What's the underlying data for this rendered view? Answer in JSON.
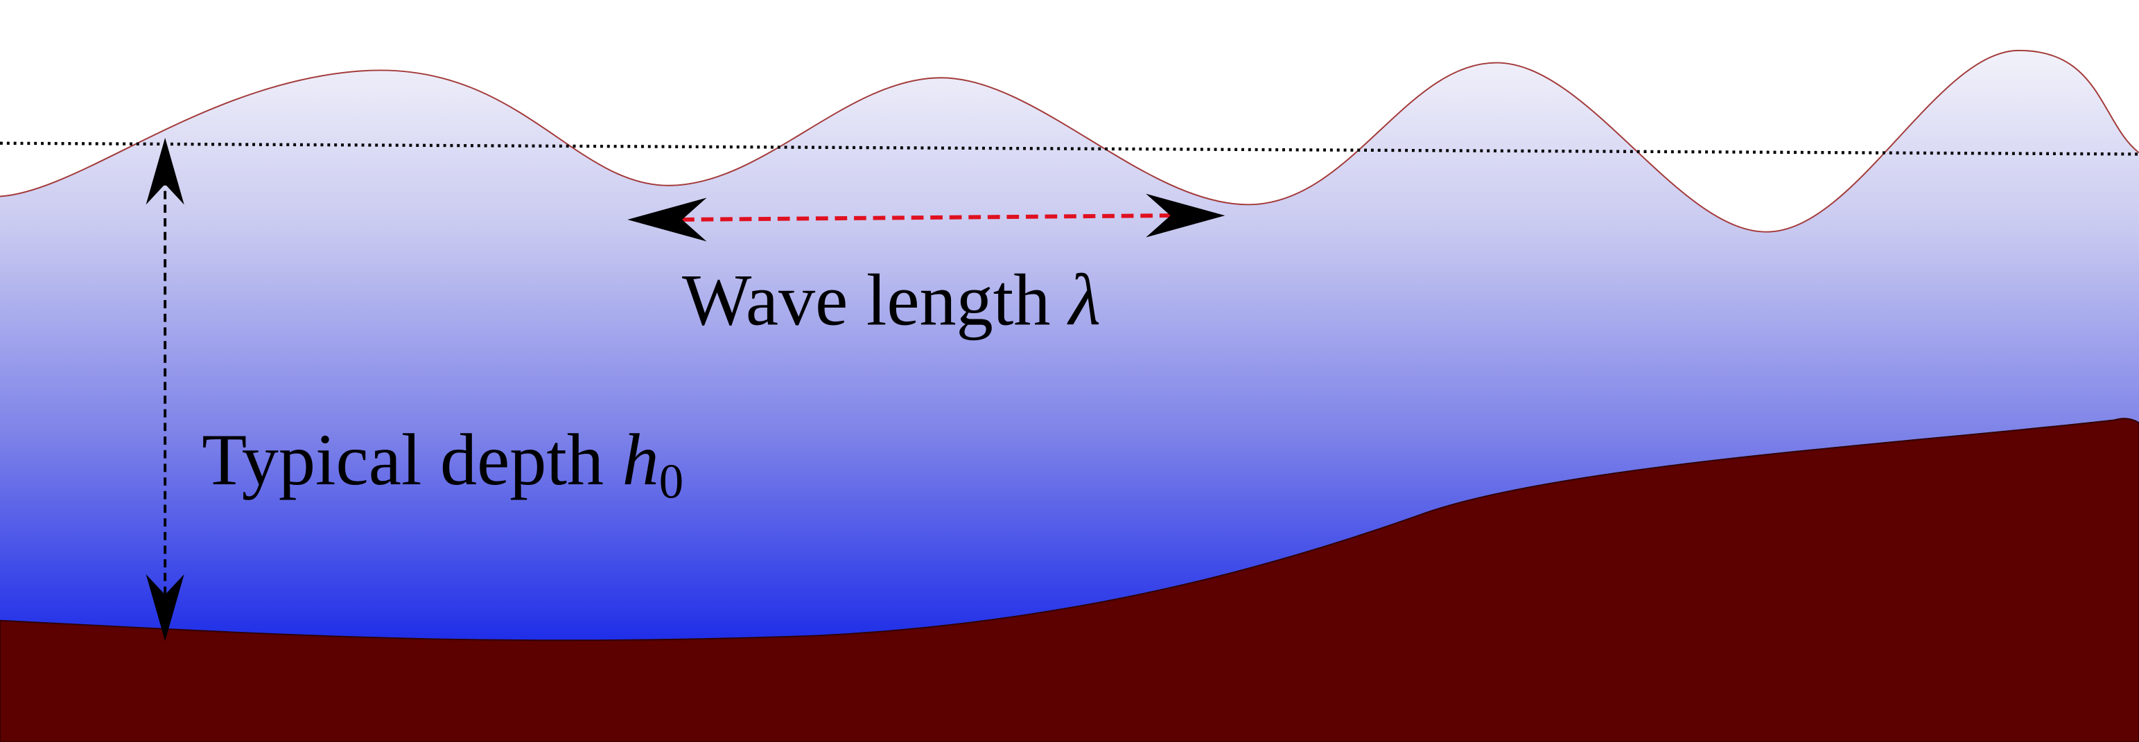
{
  "labels": {
    "wavelength": {
      "text": "Wave length",
      "symbol": "λ"
    },
    "depth": {
      "text": "Typical depth",
      "symbol": "h",
      "subscript": "0"
    }
  }
}
